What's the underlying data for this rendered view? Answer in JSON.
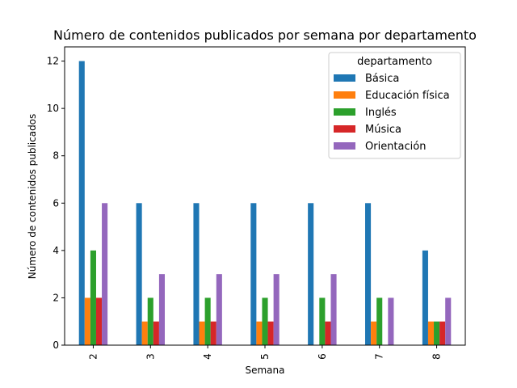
{
  "chart_data": {
    "type": "bar",
    "title": "Número de contenidos publicados por semana por departamento",
    "xlabel": "Semana",
    "ylabel": "Número de contenidos publicados",
    "categories": [
      "2",
      "3",
      "4",
      "5",
      "6",
      "7",
      "8"
    ],
    "ylim": [
      0,
      12.6
    ],
    "yticks": [
      0,
      2,
      4,
      6,
      8,
      10,
      12
    ],
    "legend": {
      "title": "departamento",
      "position": "top-right"
    },
    "grid": false,
    "series": [
      {
        "name": "Básica",
        "color": "#1f77b4",
        "values": [
          12,
          6,
          6,
          6,
          6,
          6,
          4
        ]
      },
      {
        "name": "Educación física",
        "color": "#ff7f0e",
        "values": [
          2,
          1,
          1,
          1,
          0,
          1,
          1
        ]
      },
      {
        "name": "Inglés",
        "color": "#2ca02c",
        "values": [
          4,
          2,
          2,
          2,
          2,
          2,
          1
        ]
      },
      {
        "name": "Música",
        "color": "#d62728",
        "values": [
          2,
          1,
          1,
          1,
          1,
          0,
          1
        ]
      },
      {
        "name": "Orientación",
        "color": "#9467bd",
        "values": [
          6,
          3,
          3,
          3,
          3,
          2,
          2
        ]
      }
    ]
  }
}
